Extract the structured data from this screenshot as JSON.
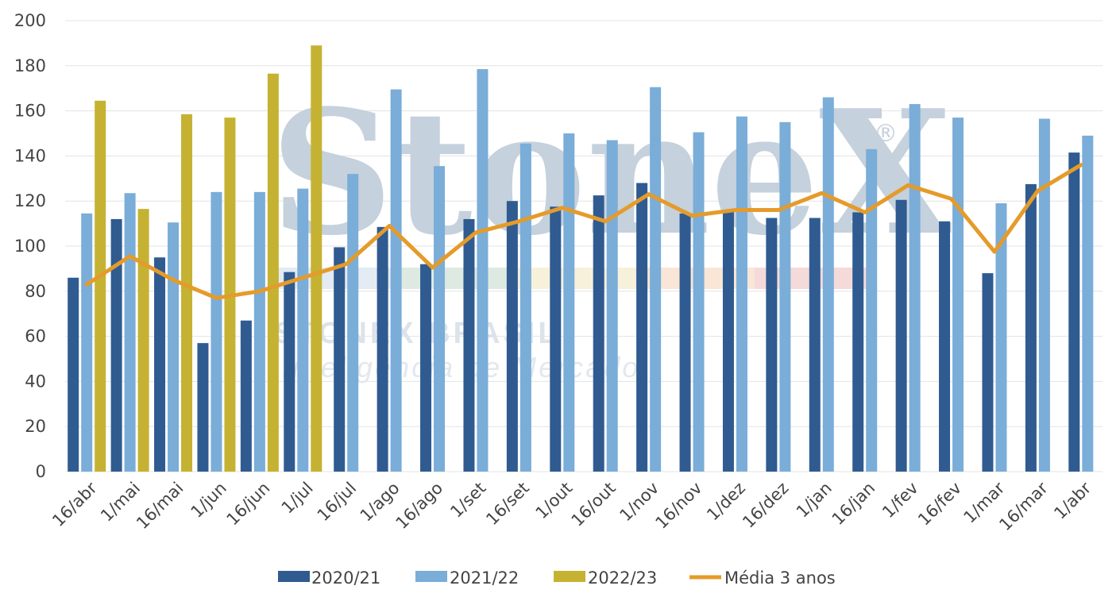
{
  "chart_data": {
    "type": "bar",
    "title": "",
    "xlabel": "",
    "ylabel": "",
    "ylim": [
      0,
      200
    ],
    "yticks": [
      0,
      20,
      40,
      60,
      80,
      100,
      120,
      140,
      160,
      180,
      200
    ],
    "grid": true,
    "legend_position": "bottom",
    "categories": [
      "16/abr",
      "1/mai",
      "16/mai",
      "1/jun",
      "16/jun",
      "1/jul",
      "16/jul",
      "1/ago",
      "16/ago",
      "1/set",
      "16/set",
      "1/out",
      "16/out",
      "1/nov",
      "16/nov",
      "1/dez",
      "16/dez",
      "1/jan",
      "16/jan",
      "1/fev",
      "16/fev",
      "1/mar",
      "16/mar",
      "1/abr"
    ],
    "series": [
      {
        "name": "2020/21",
        "type": "bar",
        "color": "#2f5b91",
        "values": [
          86,
          112,
          95,
          57,
          67,
          88.5,
          99.5,
          108.5,
          92,
          112,
          120,
          117.5,
          122.5,
          128,
          114.5,
          116,
          112.5,
          112.5,
          115,
          120.5,
          111,
          88,
          127.5,
          141.5
        ]
      },
      {
        "name": "2021/22",
        "type": "bar",
        "color": "#7aadd8",
        "values": [
          114.5,
          123.5,
          110.5,
          124,
          124,
          125.5,
          132,
          169.5,
          135.5,
          178.5,
          145.5,
          150,
          147,
          170.5,
          150.5,
          157.5,
          155,
          166,
          143,
          163,
          157,
          119,
          156.5,
          149
        ]
      },
      {
        "name": "2022/23",
        "type": "bar",
        "color": "#c5b232",
        "values": [
          164.5,
          116.5,
          158.5,
          157,
          176.5,
          189,
          null,
          null,
          null,
          null,
          null,
          null,
          null,
          null,
          null,
          null,
          null,
          null,
          null,
          null,
          null,
          null,
          null,
          null
        ]
      },
      {
        "name": "Média 3 anos",
        "type": "line",
        "color": "#e59b2a",
        "values": [
          83,
          95.5,
          85,
          77,
          80,
          86,
          92,
          109,
          90.5,
          106,
          111,
          117,
          111,
          123,
          113.5,
          116,
          116,
          123.5,
          115,
          127,
          121,
          97.5,
          124.5,
          136
        ]
      }
    ]
  },
  "watermark": {
    "brand": "StoneX",
    "registered": "®",
    "line1": "STONEX BRASIL",
    "line2": "Inteligência de Mercado",
    "stripe_colors": [
      "#dfe7f0",
      "#d8e6dc",
      "#f6efd6",
      "#f8e2cf",
      "#f3d3d3"
    ]
  }
}
